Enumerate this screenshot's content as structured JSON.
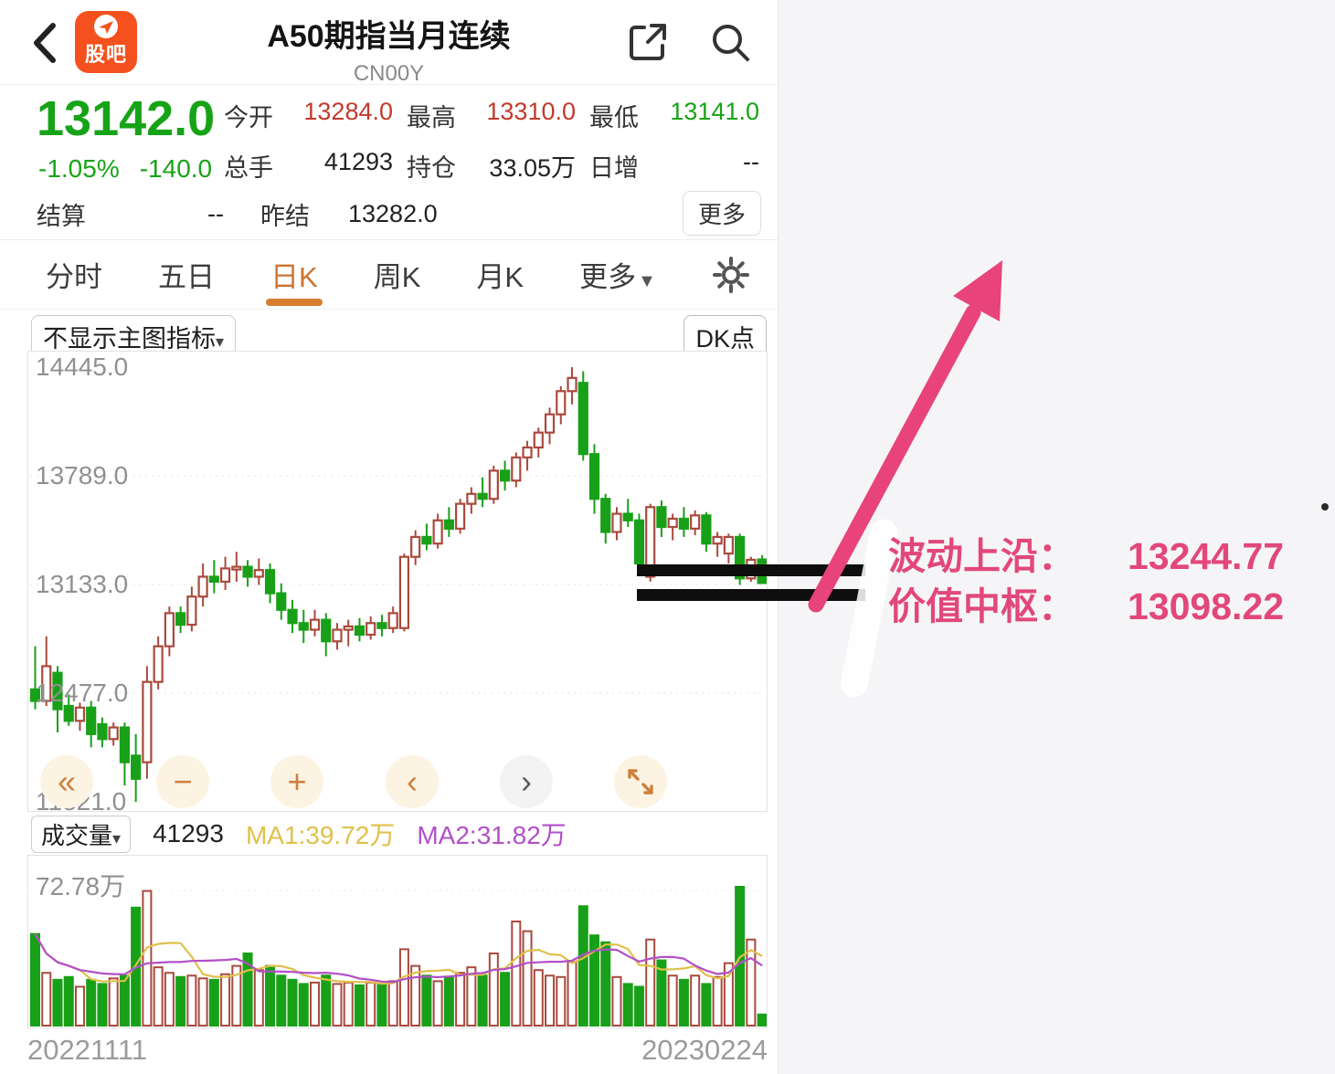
{
  "header": {
    "title": "A50期指当月连续",
    "subtitle": "CN00Y",
    "logo_text": "股吧"
  },
  "quote": {
    "price": "13142.0",
    "change_pct": "-1.05%",
    "change_val": "-140.0",
    "rows": [
      [
        {
          "key": "open",
          "label": "今开",
          "value": "13284.0",
          "color": "red"
        },
        {
          "key": "high",
          "label": "最高",
          "value": "13310.0",
          "color": "red"
        },
        {
          "key": "low",
          "label": "最低",
          "value": "13141.0",
          "color": "green"
        }
      ],
      [
        {
          "key": "volume",
          "label": "总手",
          "value": "41293",
          "color": "dark"
        },
        {
          "key": "open-interest",
          "label": "持仓",
          "value": "33.05万",
          "color": "dark"
        },
        {
          "key": "oi-change",
          "label": "日增",
          "value": "--",
          "color": "dark"
        }
      ]
    ],
    "settle_label": "结算",
    "settle_value": "--",
    "prev_settle_label": "昨结",
    "prev_settle_value": "13282.0",
    "more_label": "更多"
  },
  "tabs": {
    "items": [
      {
        "key": "minute",
        "label": "分时",
        "active": false,
        "caret": false
      },
      {
        "key": "five-day",
        "label": "五日",
        "active": false,
        "caret": false
      },
      {
        "key": "daily-k",
        "label": "日K",
        "active": true,
        "caret": false
      },
      {
        "key": "weekly-k",
        "label": "周K",
        "active": false,
        "caret": false
      },
      {
        "key": "monthly-k",
        "label": "月K",
        "active": false,
        "caret": false
      },
      {
        "key": "more",
        "label": "更多",
        "active": false,
        "caret": true
      }
    ]
  },
  "chart_toolbar": {
    "indicator_label": "不显示主图指标",
    "dk_label": "DK点"
  },
  "controls": [
    {
      "key": "fast-left",
      "glyph": "«",
      "style": "orange"
    },
    {
      "key": "zoom-out",
      "glyph": "−",
      "style": "orange"
    },
    {
      "key": "zoom-in",
      "glyph": "+",
      "style": "orange"
    },
    {
      "key": "step-left",
      "glyph": "‹",
      "style": "orange"
    },
    {
      "key": "step-right",
      "glyph": "›",
      "style": "gray"
    },
    {
      "key": "fullscreen",
      "glyph": "",
      "style": "orange"
    }
  ],
  "chart_data": {
    "type": "candlestick",
    "title": "A50期指当月连续 日K",
    "y_axis_tick_labels": [
      "14445.0",
      "13789.0",
      "13133.0",
      "12477.0",
      "11821.0"
    ],
    "y_axis_ticks": [
      14445.0,
      13789.0,
      13133.0,
      12477.0,
      11821.0
    ],
    "price_range": [
      11821.0,
      14445.0
    ],
    "x_start_label": "20221111",
    "x_end_label": "20230224",
    "up_color": "#a9493d",
    "down_color": "#18a018",
    "candles_ohlc": [
      [
        12500,
        12760,
        12380,
        12430
      ],
      [
        12430,
        12820,
        12400,
        12640
      ],
      [
        12600,
        12640,
        12240,
        12380
      ],
      [
        12400,
        12470,
        12280,
        12310
      ],
      [
        12310,
        12420,
        12250,
        12390
      ],
      [
        12390,
        12430,
        12150,
        12230
      ],
      [
        12290,
        12330,
        12150,
        12200
      ],
      [
        12200,
        12300,
        12160,
        12270
      ],
      [
        12270,
        12300,
        11920,
        12060
      ],
      [
        12100,
        12230,
        11821,
        11960
      ],
      [
        12060,
        12640,
        11960,
        12545
      ],
      [
        12545,
        12820,
        12500,
        12760
      ],
      [
        12760,
        13000,
        12700,
        12960
      ],
      [
        12960,
        13000,
        12840,
        12890
      ],
      [
        12890,
        13120,
        12850,
        13060
      ],
      [
        13060,
        13260,
        13000,
        13180
      ],
      [
        13180,
        13280,
        13080,
        13150
      ],
      [
        13150,
        13300,
        13100,
        13230
      ],
      [
        13230,
        13330,
        13150,
        13240
      ],
      [
        13240,
        13280,
        13120,
        13180
      ],
      [
        13180,
        13290,
        13130,
        13220
      ],
      [
        13220,
        13260,
        13020,
        13080
      ],
      [
        13080,
        13140,
        12920,
        12980
      ],
      [
        12980,
        13040,
        12840,
        12900
      ],
      [
        12900,
        12980,
        12780,
        12860
      ],
      [
        12860,
        12980,
        12820,
        12920
      ],
      [
        12920,
        12960,
        12700,
        12790
      ],
      [
        12790,
        12900,
        12740,
        12860
      ],
      [
        12860,
        12920,
        12760,
        12880
      ],
      [
        12880,
        12930,
        12790,
        12830
      ],
      [
        12830,
        12940,
        12800,
        12900
      ],
      [
        12900,
        12950,
        12820,
        12870
      ],
      [
        12870,
        13000,
        12840,
        12960
      ],
      [
        12870,
        13320,
        12850,
        13300
      ],
      [
        13300,
        13460,
        13250,
        13420
      ],
      [
        13420,
        13500,
        13340,
        13380
      ],
      [
        13380,
        13560,
        13350,
        13520
      ],
      [
        13520,
        13600,
        13420,
        13470
      ],
      [
        13470,
        13650,
        13440,
        13620
      ],
      [
        13620,
        13720,
        13560,
        13680
      ],
      [
        13680,
        13780,
        13600,
        13650
      ],
      [
        13650,
        13850,
        13620,
        13820
      ],
      [
        13820,
        13880,
        13700,
        13760
      ],
      [
        13760,
        13930,
        13720,
        13900
      ],
      [
        13900,
        14000,
        13820,
        13960
      ],
      [
        13960,
        14080,
        13900,
        14050
      ],
      [
        14050,
        14200,
        13980,
        14160
      ],
      [
        14160,
        14330,
        14100,
        14300
      ],
      [
        14300,
        14445,
        14220,
        14380
      ],
      [
        14350,
        14420,
        13880,
        13920
      ],
      [
        13920,
        13980,
        13560,
        13650
      ],
      [
        13650,
        13680,
        13380,
        13450
      ],
      [
        13450,
        13600,
        13400,
        13560
      ],
      [
        13560,
        13650,
        13480,
        13520
      ],
      [
        13520,
        13560,
        13200,
        13260
      ],
      [
        13180,
        13620,
        13150,
        13600
      ],
      [
        13600,
        13640,
        13420,
        13480
      ],
      [
        13480,
        13560,
        13400,
        13530
      ],
      [
        13530,
        13600,
        13420,
        13470
      ],
      [
        13470,
        13580,
        13430,
        13550
      ],
      [
        13550,
        13570,
        13330,
        13380
      ],
      [
        13380,
        13450,
        13300,
        13420
      ],
      [
        13320,
        13440,
        13260,
        13420
      ],
      [
        13420,
        13440,
        13130,
        13170
      ],
      [
        13170,
        13300,
        13150,
        13282
      ],
      [
        13284,
        13310,
        13141,
        13142
      ]
    ],
    "support_lines": [
      13244.77,
      13098.22
    ],
    "volume_pane": {
      "label": "成交量",
      "current": "41293",
      "ma1_label": "MA1:39.72万",
      "ma2_label": "MA2:31.82万",
      "ma1_color": "#e0c04a",
      "ma2_color": "#b24fc8",
      "y_tick_label": "72.78万",
      "bars_rel": [
        0.66,
        0.38,
        0.33,
        0.35,
        0.28,
        0.33,
        0.3,
        0.34,
        0.36,
        0.85,
        0.97,
        0.42,
        0.38,
        0.35,
        0.36,
        0.34,
        0.33,
        0.37,
        0.43,
        0.52,
        0.4,
        0.43,
        0.36,
        0.33,
        0.3,
        0.31,
        0.36,
        0.3,
        0.31,
        0.29,
        0.31,
        0.3,
        0.32,
        0.55,
        0.43,
        0.36,
        0.32,
        0.35,
        0.38,
        0.42,
        0.36,
        0.52,
        0.38,
        0.75,
        0.68,
        0.4,
        0.36,
        0.35,
        0.46,
        0.86,
        0.65,
        0.6,
        0.35,
        0.3,
        0.28,
        0.62,
        0.47,
        0.36,
        0.33,
        0.36,
        0.3,
        0.35,
        0.45,
        1.0,
        0.62,
        0.08
      ]
    }
  },
  "annotation": {
    "line1_label": "波动上沿：",
    "line1_value": "13244.77",
    "line2_label": "价值中枢：",
    "line2_value": "13098.22",
    "arrow_color": "#e8437a"
  }
}
